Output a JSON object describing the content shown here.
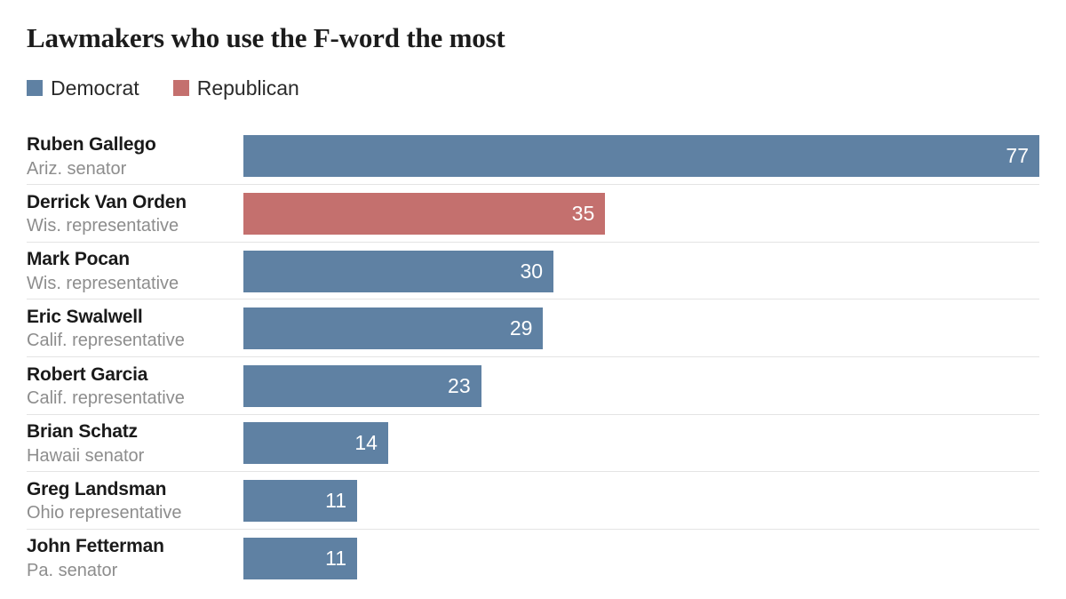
{
  "title": "Lawmakers who use the F-word the most",
  "legend": [
    {
      "label": "Democrat",
      "party": "Democrat",
      "color": "#5f81a3"
    },
    {
      "label": "Republican",
      "party": "Republican",
      "color": "#c4706e"
    }
  ],
  "chart_data": {
    "type": "bar",
    "orientation": "horizontal",
    "title": "Lawmakers who use the F-word the most",
    "value_axis_max": 77,
    "grid": false,
    "legend_position": "top-left",
    "colors": {
      "Democrat": "#5f81a3",
      "Republican": "#c4706e"
    },
    "bars": [
      {
        "name": "Ruben Gallego",
        "role": "Ariz. senator",
        "value": 77,
        "party": "Democrat"
      },
      {
        "name": "Derrick Van Orden",
        "role": "Wis. representative",
        "value": 35,
        "party": "Republican"
      },
      {
        "name": "Mark Pocan",
        "role": "Wis. representative",
        "value": 30,
        "party": "Democrat"
      },
      {
        "name": "Eric Swalwell",
        "role": "Calif. representative",
        "value": 29,
        "party": "Democrat"
      },
      {
        "name": "Robert Garcia",
        "role": "Calif. representative",
        "value": 23,
        "party": "Democrat"
      },
      {
        "name": "Brian Schatz",
        "role": "Hawaii senator",
        "value": 14,
        "party": "Democrat"
      },
      {
        "name": "Greg Landsman",
        "role": "Ohio representative",
        "value": 11,
        "party": "Democrat"
      },
      {
        "name": "John Fetterman",
        "role": "Pa. senator",
        "value": 11,
        "party": "Democrat"
      }
    ]
  }
}
